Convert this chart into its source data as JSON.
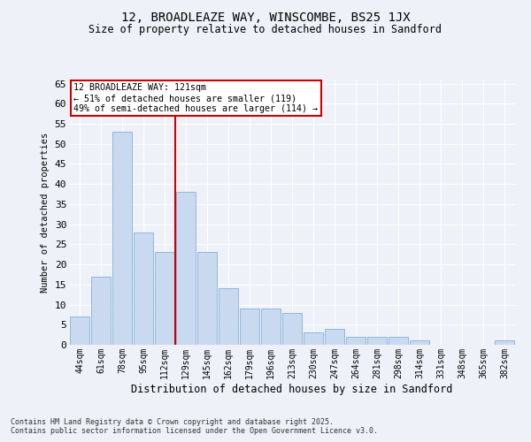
{
  "title": "12, BROADLEAZE WAY, WINSCOMBE, BS25 1JX",
  "subtitle": "Size of property relative to detached houses in Sandford",
  "xlabel": "Distribution of detached houses by size in Sandford",
  "ylabel": "Number of detached properties",
  "categories": [
    "44sqm",
    "61sqm",
    "78sqm",
    "95sqm",
    "112sqm",
    "129sqm",
    "145sqm",
    "162sqm",
    "179sqm",
    "196sqm",
    "213sqm",
    "230sqm",
    "247sqm",
    "264sqm",
    "281sqm",
    "298sqm",
    "314sqm",
    "331sqm",
    "348sqm",
    "365sqm",
    "382sqm"
  ],
  "values": [
    7,
    17,
    53,
    28,
    23,
    38,
    23,
    14,
    9,
    9,
    8,
    3,
    4,
    2,
    2,
    2,
    1,
    0,
    0,
    0,
    1
  ],
  "bar_color": "#c9d9f0",
  "bar_edge_color": "#8fb8dc",
  "vline_color": "#cc0000",
  "annotation_text": "12 BROADLEAZE WAY: 121sqm\n← 51% of detached houses are smaller (119)\n49% of semi-detached houses are larger (114) →",
  "annotation_box_color": "#ffffff",
  "annotation_box_edge": "#cc0000",
  "ylim": [
    0,
    66
  ],
  "yticks": [
    0,
    5,
    10,
    15,
    20,
    25,
    30,
    35,
    40,
    45,
    50,
    55,
    60,
    65
  ],
  "background_color": "#eef2f8",
  "grid_color": "#ffffff",
  "footer_line1": "Contains HM Land Registry data © Crown copyright and database right 2025.",
  "footer_line2": "Contains public sector information licensed under the Open Government Licence v3.0."
}
